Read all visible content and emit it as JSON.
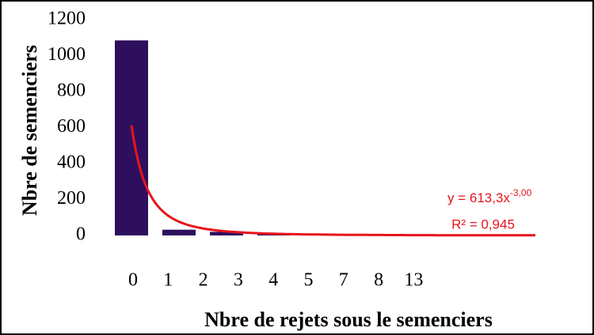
{
  "chart_data": {
    "type": "bar",
    "categories": [
      "0",
      "1",
      "2",
      "3",
      "4",
      "5",
      "7",
      "8",
      "13"
    ],
    "values": [
      1085,
      32,
      20,
      10,
      8,
      3,
      2,
      2,
      2
    ],
    "color": "#2e0f5e",
    "ylim": [
      0,
      1200
    ],
    "yticks": [
      0,
      200,
      400,
      600,
      800,
      1000,
      1200
    ],
    "grid": false,
    "y_label": "Nbre de semenciers",
    "x_label": "Nbre de rejets sous le semenciers",
    "trendline": {
      "type": "power",
      "coefficient": 613.3,
      "exponent": -3,
      "color": "#e8141c",
      "equation_label": "y = 613,3x",
      "exponent_label": "-3,00",
      "r2_label": "R² = 0,945"
    }
  }
}
